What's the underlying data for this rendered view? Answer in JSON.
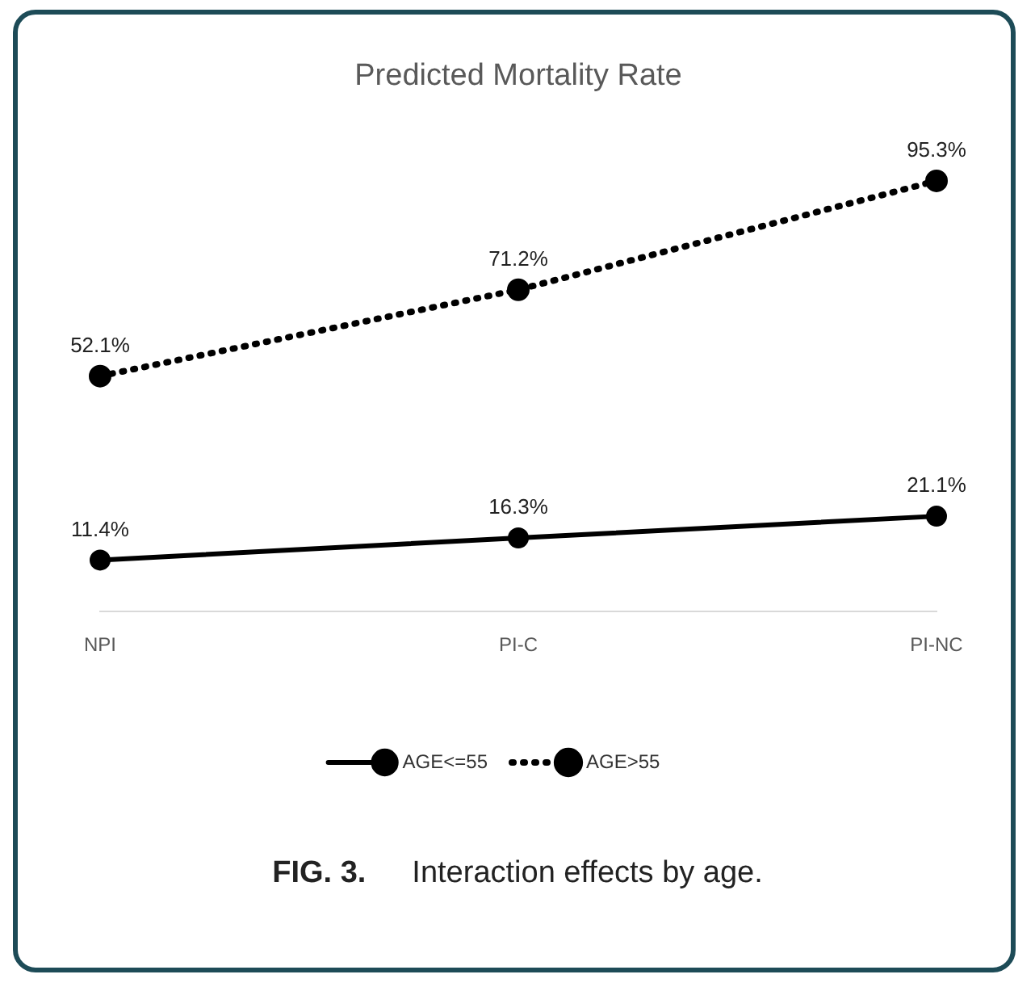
{
  "chart_data": {
    "type": "line",
    "title": "Predicted Mortality Rate",
    "categories": [
      "NPI",
      "PI-C",
      "PI-NC"
    ],
    "series": [
      {
        "name": "AGE<=55",
        "color": "#000000",
        "line_style": "solid",
        "values": [
          11.4,
          16.3,
          21.1
        ],
        "value_labels": [
          "11.4%",
          "16.3%",
          "21.1%"
        ]
      },
      {
        "name": "AGE>55",
        "color": "#000000",
        "line_style": "dotted",
        "values": [
          52.1,
          71.2,
          95.3
        ],
        "value_labels": [
          "52.1%",
          "71.2%",
          "95.3%"
        ]
      }
    ],
    "marker": "circle",
    "grid": false,
    "legend": "bottom",
    "annotations": [
      "FIG. 3. Interaction effects by age."
    ]
  }
}
